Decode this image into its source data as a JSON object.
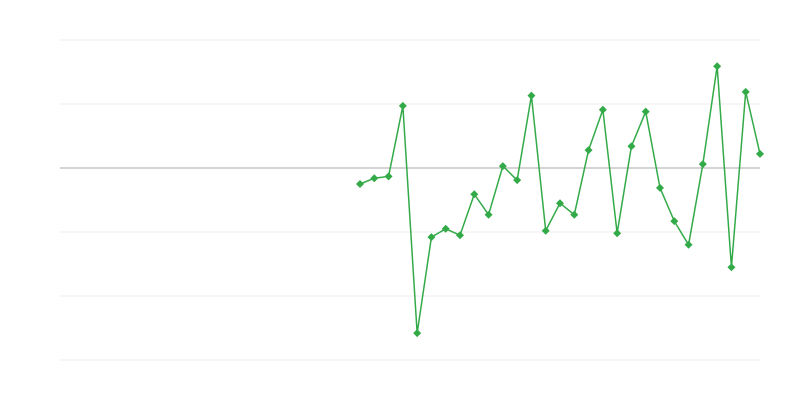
{
  "chart_data": {
    "type": "line",
    "x": [
      21,
      22,
      23,
      24,
      25,
      26,
      27,
      28,
      29,
      30,
      31,
      32,
      33,
      34,
      35,
      36,
      37,
      38,
      39,
      40,
      41,
      42,
      43,
      44,
      45,
      46,
      47,
      48,
      49
    ],
    "series": [
      {
        "color": "#33aa48",
        "values": [
          -0.25,
          -0.16,
          -0.13,
          0.97,
          -2.58,
          -1.08,
          -0.95,
          -1.05,
          -0.41,
          -0.73,
          0.03,
          -0.19,
          1.13,
          -0.98,
          -0.55,
          -0.73,
          0.28,
          0.91,
          -1.02,
          0.34,
          0.88,
          -0.31,
          -0.83,
          -1.2,
          0.06,
          1.59,
          -1.55,
          1.19,
          0.22
        ]
      }
    ],
    "xlim": [
      0,
      49
    ],
    "ylim": [
      -3,
      2
    ],
    "yticks": [
      -3,
      -2,
      -1,
      0,
      1,
      2
    ],
    "grid": true,
    "zero_line": true,
    "markers": "diamond"
  }
}
